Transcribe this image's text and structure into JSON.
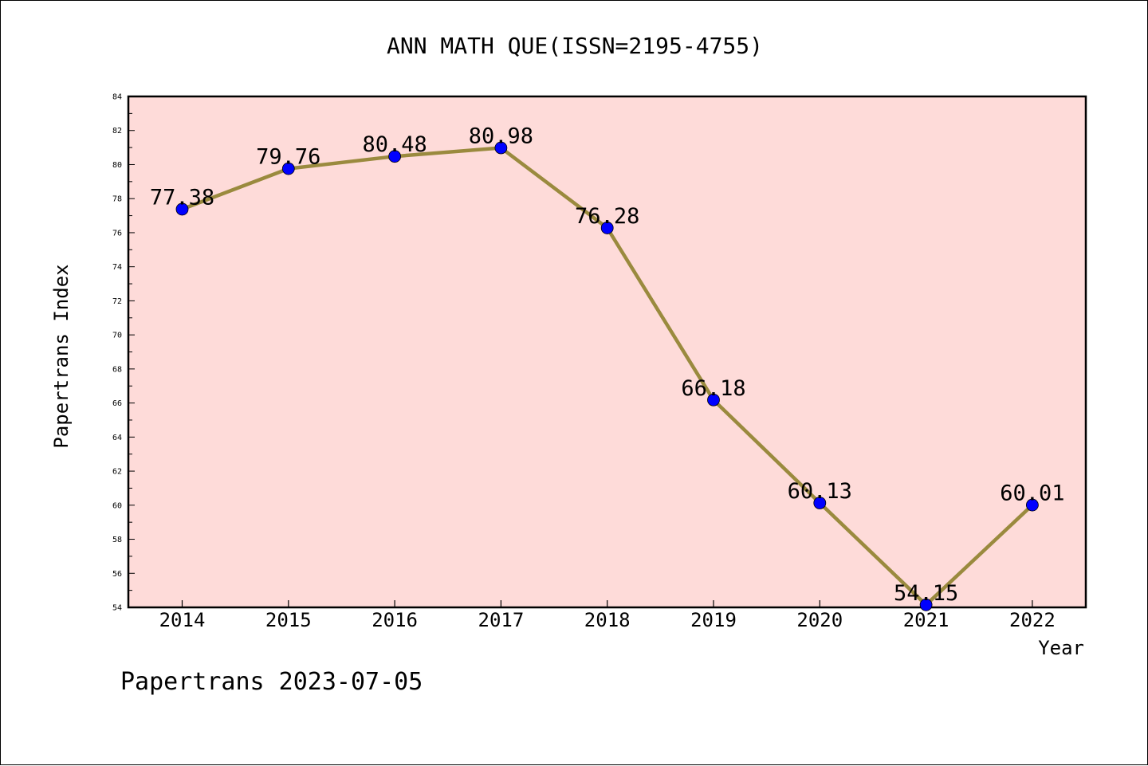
{
  "chart_data": {
    "type": "line",
    "title": "ANN MATH QUE(ISSN=2195-4755)",
    "xlabel": "Year",
    "ylabel": "Papertrans Index",
    "categories": [
      "2014",
      "2015",
      "2016",
      "2017",
      "2018",
      "2019",
      "2020",
      "2021",
      "2022"
    ],
    "series": [
      {
        "values": [
          77.38,
          79.76,
          80.48,
          80.98,
          76.28,
          66.18,
          60.13,
          54.15,
          60.01
        ],
        "labels": [
          "77.38",
          "79.76",
          "80.48",
          "80.98",
          "76.28",
          "66.18",
          "60.13",
          "54.15",
          "60.01"
        ],
        "line_color": "#9a8a3e",
        "marker_color": "#0000ff"
      }
    ],
    "ylim": [
      54,
      84
    ],
    "yticks": [
      "54",
      "56",
      "58",
      "60",
      "62",
      "64",
      "66",
      "68",
      "70",
      "72",
      "74",
      "76",
      "78",
      "80",
      "82",
      "84"
    ],
    "plot_background": "#fedbd9",
    "grid": false,
    "legend": "none"
  },
  "footer": "Papertrans 2023-07-05"
}
